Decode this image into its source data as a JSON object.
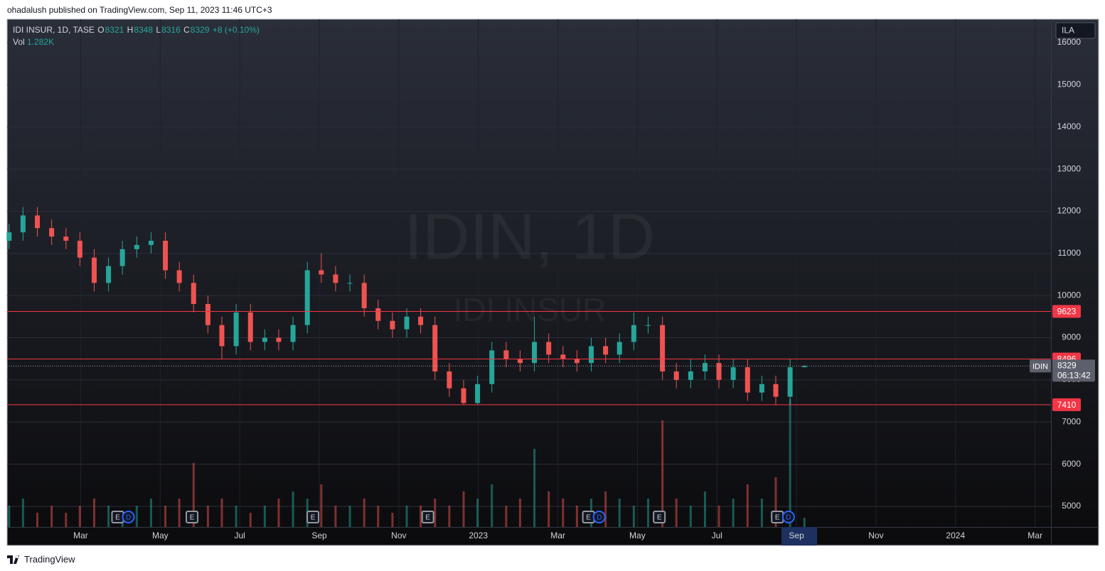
{
  "header": {
    "published": "ohadalush published on TradingView.com, Sep 11, 2023 11:46 UTC+3"
  },
  "footer": {
    "brand": "TradingView"
  },
  "chart_data": {
    "type": "candlestick",
    "watermark": {
      "symbol": "IDIN, 1D",
      "name": "IDI INSUR"
    },
    "currency": "ILA",
    "legend": {
      "symbol": "IDI INSUR, 1D, TASE",
      "open_label": "O",
      "open": 8321,
      "high_label": "H",
      "high": 8348,
      "low_label": "L",
      "low": 8316,
      "close_label": "C",
      "close": 8329,
      "change": "+8 (+0.10%)",
      "volume_label": "Vol",
      "volume": "1.282K"
    },
    "price_tag": {
      "symbol": "IDIN",
      "countdown": "06:13:42"
    },
    "up_color": "#26a69a",
    "down_color": "#ef5350",
    "x": [
      0.2,
      0.55,
      0.91,
      1.27,
      1.63,
      1.98,
      2.34,
      2.7,
      3.05,
      3.41,
      3.77,
      4.13,
      4.48,
      4.84,
      5.2,
      5.55,
      5.91,
      6.27,
      6.63,
      6.98,
      7.34,
      7.7,
      8.05,
      8.41,
      8.77,
      9.13,
      9.48,
      9.84,
      10.2,
      10.55,
      10.91,
      11.27,
      11.63,
      11.98,
      12.34,
      12.7,
      13.05,
      13.41,
      13.77,
      14.13,
      14.48,
      14.84,
      15.2,
      15.55,
      15.91,
      16.27,
      16.63,
      16.98,
      17.34,
      17.7,
      18.05,
      18.41,
      18.77,
      19.13,
      19.48,
      19.84,
      20.2
    ],
    "open": [
      11300,
      11500,
      11900,
      11600,
      11400,
      11300,
      10900,
      10300,
      10700,
      11100,
      11200,
      11300,
      10600,
      10300,
      9800,
      9300,
      8800,
      9600,
      8900,
      9000,
      8900,
      9300,
      10600,
      10500,
      10300,
      10300,
      9700,
      9400,
      9200,
      9500,
      9300,
      8200,
      7800,
      7450,
      7900,
      8700,
      8500,
      8400,
      8900,
      8600,
      8500,
      8400,
      8800,
      8600,
      8900,
      9300,
      9300,
      8200,
      8000,
      8200,
      8400,
      8000,
      8300,
      7700,
      7900,
      7600,
      8300
    ],
    "high": [
      11700,
      12100,
      12100,
      11800,
      11600,
      11500,
      11100,
      10900,
      11300,
      11400,
      11500,
      11500,
      10800,
      10500,
      10000,
      9500,
      9800,
      9800,
      9200,
      9200,
      9500,
      10800,
      11000,
      10700,
      10500,
      10500,
      9900,
      9600,
      9700,
      9700,
      9500,
      8400,
      8000,
      8100,
      8900,
      8900,
      8700,
      9500,
      9100,
      8800,
      8700,
      9000,
      9000,
      9100,
      9600,
      9500,
      9500,
      8400,
      8500,
      8600,
      8600,
      8500,
      8500,
      8100,
      8100,
      8500,
      8348
    ],
    "low": [
      11100,
      11300,
      11400,
      11200,
      11100,
      10700,
      10100,
      10100,
      10500,
      10900,
      11000,
      10400,
      10100,
      9600,
      9100,
      8500,
      8600,
      8700,
      8700,
      8700,
      8700,
      9100,
      10300,
      10100,
      10100,
      9500,
      9200,
      9000,
      9000,
      9100,
      8000,
      7600,
      7400,
      7400,
      7700,
      8300,
      8200,
      8200,
      8400,
      8300,
      8200,
      8200,
      8400,
      8400,
      8700,
      9100,
      8000,
      7800,
      7800,
      8000,
      7800,
      7800,
      7500,
      7500,
      7400,
      7400,
      8300
    ],
    "close": [
      11500,
      11900,
      11600,
      11400,
      11300,
      10900,
      10300,
      10700,
      11100,
      11200,
      11300,
      10600,
      10300,
      9800,
      9300,
      8800,
      9600,
      8900,
      9000,
      8900,
      9300,
      10600,
      10500,
      10300,
      10300,
      9700,
      9400,
      9200,
      9500,
      9300,
      8200,
      7800,
      7450,
      7900,
      8700,
      8500,
      8400,
      8900,
      8600,
      8500,
      8400,
      8800,
      8600,
      8900,
      9300,
      9300,
      8200,
      8000,
      8200,
      8400,
      8000,
      8300,
      7700,
      7900,
      7600,
      8300,
      8329
    ],
    "volume": [
      3,
      4,
      2,
      3,
      2,
      3,
      4,
      3,
      2,
      3,
      4,
      3,
      4,
      9,
      3,
      4,
      3,
      2,
      3,
      4,
      5,
      4,
      6,
      3,
      3,
      4,
      3,
      2,
      3,
      3,
      4,
      3,
      5,
      4,
      6,
      3,
      4,
      11,
      5,
      4,
      3,
      4,
      5,
      4,
      3,
      4,
      15,
      4,
      3,
      5,
      3,
      4,
      6,
      4,
      7,
      18,
      1.282
    ],
    "hlines": [
      {
        "value": 9623,
        "color": "#f23645"
      },
      {
        "value": 8496,
        "color": "#f23645"
      },
      {
        "value": 7410,
        "color": "#f23645"
      }
    ],
    "events": [
      {
        "x": 2.93,
        "label": "E"
      },
      {
        "x": 4.8,
        "label": "E"
      },
      {
        "x": 7.84,
        "label": "E"
      },
      {
        "x": 10.73,
        "label": "E"
      },
      {
        "x": 14.77,
        "label": "E"
      },
      {
        "x": 16.55,
        "label": "E"
      },
      {
        "x": 19.52,
        "label": "E"
      },
      {
        "x": 3.2,
        "label": "D"
      },
      {
        "x": 15.04,
        "label": "D"
      },
      {
        "x": 19.8,
        "label": "D"
      }
    ],
    "xlim": [
      0.15,
      26.4
    ],
    "xticks": [
      {
        "value": 2,
        "label": "Mar"
      },
      {
        "value": 4,
        "label": "May"
      },
      {
        "value": 6,
        "label": "Jul"
      },
      {
        "value": 8,
        "label": "Sep"
      },
      {
        "value": 10,
        "label": "Nov"
      },
      {
        "value": 12,
        "label": "2023"
      },
      {
        "value": 14,
        "label": "Mar"
      },
      {
        "value": 16,
        "label": "May"
      },
      {
        "value": 18,
        "label": "Jul"
      },
      {
        "value": 20,
        "label": "Sep"
      },
      {
        "value": 22,
        "label": "Nov"
      },
      {
        "value": 24,
        "label": "2024"
      },
      {
        "value": 26,
        "label": "Mar"
      }
    ],
    "highlight_xtick": 9,
    "ylim": [
      4511,
      16556
    ],
    "yticks": [
      5000,
      6000,
      7000,
      8000,
      9000,
      10000,
      11000,
      12000,
      13000,
      14000,
      15000,
      16000
    ],
    "grid": true
  }
}
